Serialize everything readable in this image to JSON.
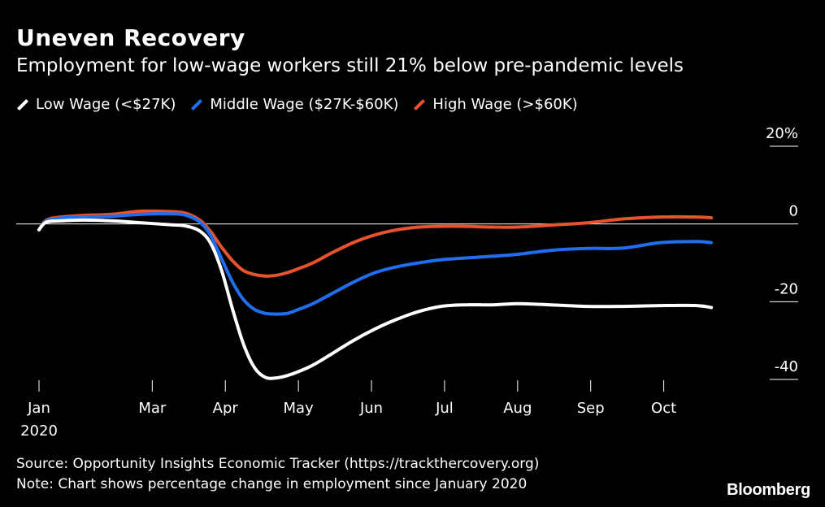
{
  "chart_data": {
    "type": "line",
    "title": "Uneven Recovery",
    "subtitle": "Employment for low-wage workers still 21% below pre-pandemic levels",
    "xlabel": "",
    "ylabel": "",
    "ylim": [
      -40,
      20
    ],
    "xlim": [
      0,
      9.7
    ],
    "y_ticks": [
      {
        "value": 20,
        "label": "20%"
      },
      {
        "value": 0,
        "label": "0"
      },
      {
        "value": -20,
        "label": "-20"
      },
      {
        "value": -40,
        "label": "-40"
      }
    ],
    "x_ticks": [
      {
        "value": 0,
        "label": "Jan",
        "sublabel": "2020"
      },
      {
        "value": 1.55,
        "label": "Mar",
        "sublabel": ""
      },
      {
        "value": 2.55,
        "label": "Apr",
        "sublabel": ""
      },
      {
        "value": 3.55,
        "label": "May",
        "sublabel": ""
      },
      {
        "value": 4.55,
        "label": "Jun",
        "sublabel": ""
      },
      {
        "value": 5.55,
        "label": "Jul",
        "sublabel": ""
      },
      {
        "value": 6.55,
        "label": "Aug",
        "sublabel": ""
      },
      {
        "value": 7.55,
        "label": "Sep",
        "sublabel": ""
      },
      {
        "value": 8.55,
        "label": "Oct",
        "sublabel": ""
      }
    ],
    "series": [
      {
        "name": "Low Wage (<$27K)",
        "color": "#ffffff",
        "x": [
          0,
          0.1,
          0.3,
          0.6,
          1.0,
          1.4,
          1.8,
          2.0,
          2.2,
          2.35,
          2.5,
          2.65,
          2.8,
          2.95,
          3.1,
          3.25,
          3.4,
          3.55,
          3.75,
          4.0,
          4.3,
          4.6,
          4.9,
          5.2,
          5.5,
          5.8,
          6.2,
          6.55,
          7.0,
          7.5,
          8.0,
          8.5,
          9.0,
          9.2
        ],
        "values": [
          -1.5,
          0.5,
          0.8,
          1.0,
          0.8,
          0.3,
          -0.2,
          -0.5,
          -1.8,
          -5,
          -12,
          -22,
          -31,
          -37,
          -39.5,
          -39.6,
          -39,
          -38,
          -36.3,
          -33.5,
          -30,
          -27,
          -24.5,
          -22.5,
          -21.2,
          -20.8,
          -20.8,
          -20.5,
          -20.8,
          -21.2,
          -21.2,
          -21.0,
          -21.0,
          -21.5
        ]
      },
      {
        "name": "Middle Wage ($27K-$60K)",
        "color": "#1f6ef0",
        "x": [
          0,
          0.1,
          0.3,
          0.6,
          1.0,
          1.4,
          1.8,
          2.0,
          2.2,
          2.35,
          2.5,
          2.65,
          2.8,
          2.95,
          3.1,
          3.25,
          3.4,
          3.55,
          3.75,
          4.0,
          4.3,
          4.6,
          4.9,
          5.2,
          5.5,
          5.8,
          6.2,
          6.55,
          7.0,
          7.5,
          8.0,
          8.5,
          9.0,
          9.2
        ],
        "values": [
          -1.5,
          0.8,
          1.5,
          1.8,
          2.0,
          2.5,
          2.6,
          2.3,
          0.5,
          -3,
          -9,
          -15,
          -19.5,
          -22,
          -23,
          -23.2,
          -23,
          -22,
          -20.5,
          -18,
          -15,
          -12.5,
          -11,
          -10,
          -9.2,
          -8.8,
          -8.3,
          -7.8,
          -6.8,
          -6.3,
          -6.2,
          -4.8,
          -4.5,
          -4.8
        ]
      },
      {
        "name": "High Wage (>$60K)",
        "color": "#e8522c",
        "x": [
          0,
          0.1,
          0.3,
          0.6,
          1.0,
          1.4,
          1.8,
          2.0,
          2.2,
          2.35,
          2.5,
          2.65,
          2.8,
          2.95,
          3.1,
          3.25,
          3.4,
          3.55,
          3.75,
          4.0,
          4.3,
          4.6,
          4.9,
          5.2,
          5.5,
          5.8,
          6.2,
          6.55,
          7.0,
          7.5,
          8.0,
          8.5,
          9.0,
          9.2
        ],
        "values": [
          -1.5,
          1.0,
          1.8,
          2.2,
          2.5,
          3.3,
          3.2,
          2.8,
          1.0,
          -2,
          -6,
          -9.5,
          -12,
          -13,
          -13.4,
          -13.2,
          -12.5,
          -11.5,
          -10,
          -7.5,
          -4.8,
          -2.8,
          -1.5,
          -0.8,
          -0.6,
          -0.6,
          -0.8,
          -0.8,
          -0.3,
          0.3,
          1.3,
          1.8,
          1.8,
          1.6
        ]
      }
    ]
  },
  "legend": [
    {
      "label": "Low Wage (<$27K)",
      "color": "#ffffff"
    },
    {
      "label": "Middle Wage ($27K-$60K)",
      "color": "#1f6ef0"
    },
    {
      "label": "High Wage (>$60K)",
      "color": "#e8522c"
    }
  ],
  "footer": {
    "source": "Source: Opportunity Insights Economic Tracker (https://trackthercovery.org)",
    "note": "Note: Chart shows percentage change in employment since January 2020",
    "brand": "Bloomberg"
  }
}
